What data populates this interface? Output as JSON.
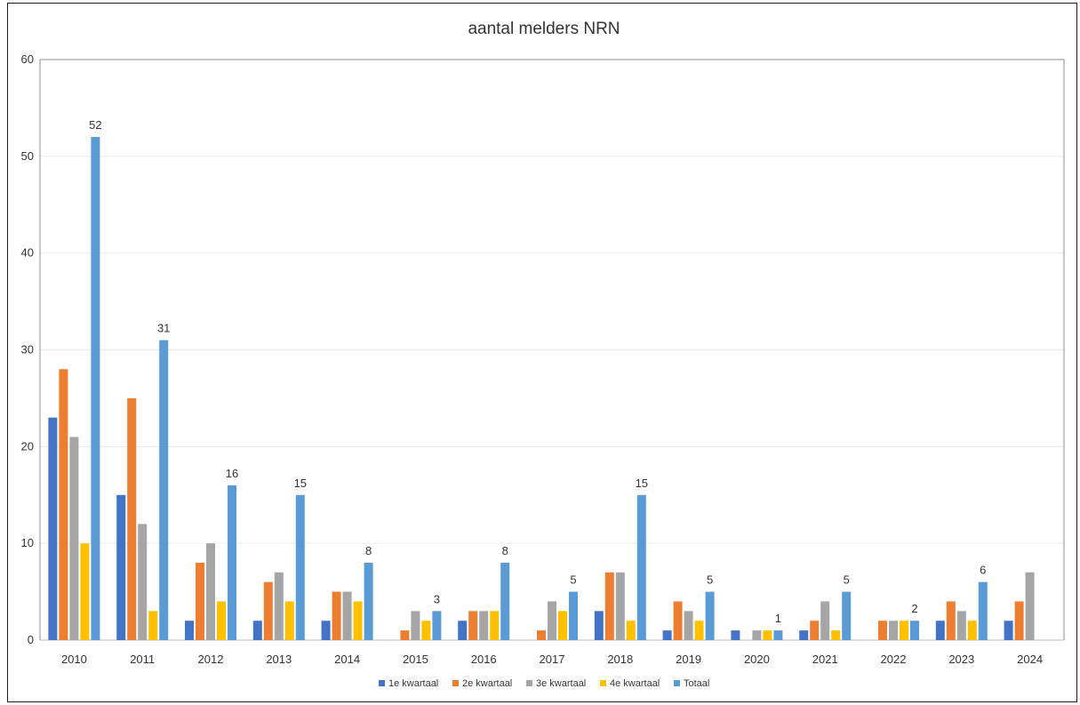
{
  "chart_data": {
    "type": "bar",
    "title": "aantal melders NRN",
    "xlabel": "",
    "ylabel": "",
    "ylim": [
      0,
      60
    ],
    "yticks": [
      0,
      10,
      20,
      30,
      40,
      50,
      60
    ],
    "grid": true,
    "legend_position": "bottom",
    "categories": [
      "2010",
      "2011",
      "2012",
      "2013",
      "2014",
      "2015",
      "2016",
      "2017",
      "2018",
      "2019",
      "2020",
      "2021",
      "2022",
      "2023",
      "2024"
    ],
    "series": [
      {
        "name": "1e kwartaal",
        "color": "#4472C4",
        "values": [
          23,
          15,
          2,
          2,
          2,
          null,
          2,
          null,
          3,
          1,
          1,
          1,
          null,
          2,
          2
        ]
      },
      {
        "name": "2e kwartaal",
        "color": "#ED7D31",
        "values": [
          28,
          25,
          8,
          6,
          5,
          1,
          3,
          1,
          7,
          4,
          null,
          2,
          2,
          4,
          4
        ]
      },
      {
        "name": "3e kwartaal",
        "color": "#A5A5A5",
        "values": [
          21,
          12,
          10,
          7,
          5,
          3,
          3,
          4,
          7,
          3,
          1,
          4,
          2,
          3,
          7
        ]
      },
      {
        "name": "4e kwartaal",
        "color": "#FFC000",
        "values": [
          10,
          3,
          4,
          4,
          4,
          2,
          3,
          3,
          2,
          2,
          1,
          1,
          2,
          2,
          null
        ]
      },
      {
        "name": "Totaal",
        "color": "#5B9BD5",
        "values": [
          52,
          31,
          16,
          15,
          8,
          3,
          8,
          5,
          15,
          5,
          1,
          5,
          2,
          6,
          null
        ],
        "show_labels": true
      }
    ]
  }
}
